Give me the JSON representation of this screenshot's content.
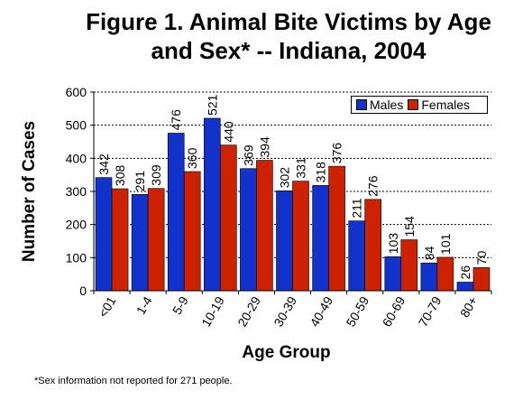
{
  "title": {
    "line1": "Figure 1. Animal Bite Victims by Age",
    "line2": "and Sex* -- Indiana, 2004"
  },
  "footnote": "*Sex information not reported for 271 people.",
  "colors": {
    "males": "#1133cc",
    "females": "#cc2200"
  },
  "chart_data": {
    "type": "bar",
    "title": "Figure 1. Animal Bite Victims by Age and Sex* -- Indiana, 2004",
    "xlabel": "Age Group",
    "ylabel": "Number of Cases",
    "ylim": [
      0,
      600
    ],
    "yticks": [
      0,
      100,
      200,
      300,
      400,
      500,
      600
    ],
    "grid": true,
    "legend_position": "top-right",
    "categories": [
      "<01",
      "1-4",
      "5-9",
      "10-19",
      "20-29",
      "30-39",
      "40-49",
      "50-59",
      "60-69",
      "70-79",
      "80+"
    ],
    "series": [
      {
        "name": "Males",
        "values": [
          342,
          291,
          476,
          521,
          369,
          302,
          318,
          211,
          103,
          84,
          26
        ]
      },
      {
        "name": "Females",
        "values": [
          308,
          309,
          360,
          440,
          394,
          331,
          376,
          276,
          154,
          101,
          70
        ]
      }
    ]
  }
}
